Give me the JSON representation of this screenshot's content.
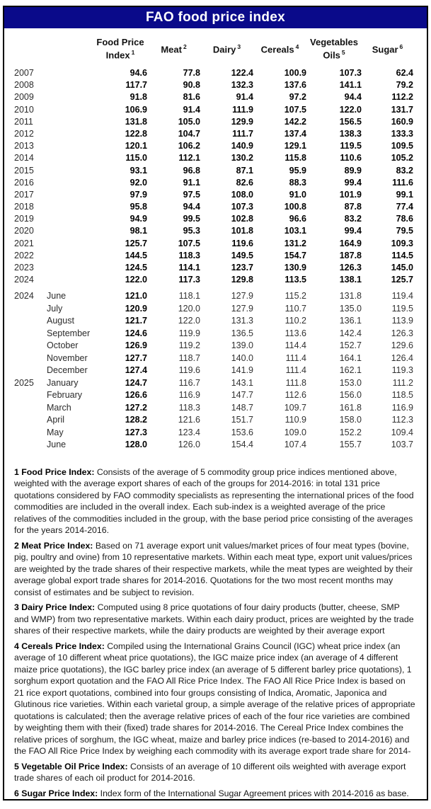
{
  "title": "FAO food price index",
  "table": {
    "columns": [
      {
        "label": "Food Price Index",
        "sup": "1"
      },
      {
        "label": "Meat",
        "sup": "2"
      },
      {
        "label": "Dairy",
        "sup": "3"
      },
      {
        "label": "Cereals",
        "sup": "4"
      },
      {
        "label": "Vegetables Oils",
        "sup": "5"
      },
      {
        "label": "Sugar",
        "sup": "6"
      }
    ],
    "year_rows": [
      {
        "year": "2007",
        "values": [
          "94.6",
          "77.8",
          "122.4",
          "100.9",
          "107.3",
          "62.4"
        ]
      },
      {
        "year": "2008",
        "values": [
          "117.7",
          "90.8",
          "132.3",
          "137.6",
          "141.1",
          "79.2"
        ]
      },
      {
        "year": "2009",
        "values": [
          "91.8",
          "81.6",
          "91.4",
          "97.2",
          "94.4",
          "112.2"
        ]
      },
      {
        "year": "2010",
        "values": [
          "106.9",
          "91.4",
          "111.9",
          "107.5",
          "122.0",
          "131.7"
        ]
      },
      {
        "year": "2011",
        "values": [
          "131.8",
          "105.0",
          "129.9",
          "142.2",
          "156.5",
          "160.9"
        ]
      },
      {
        "year": "2012",
        "values": [
          "122.8",
          "104.7",
          "111.7",
          "137.4",
          "138.3",
          "133.3"
        ]
      },
      {
        "year": "2013",
        "values": [
          "120.1",
          "106.2",
          "140.9",
          "129.1",
          "119.5",
          "109.5"
        ]
      },
      {
        "year": "2014",
        "values": [
          "115.0",
          "112.1",
          "130.2",
          "115.8",
          "110.6",
          "105.2"
        ]
      },
      {
        "year": "2015",
        "values": [
          "93.1",
          "96.8",
          "87.1",
          "95.9",
          "89.9",
          "83.2"
        ]
      },
      {
        "year": "2016",
        "values": [
          "92.0",
          "91.1",
          "82.6",
          "88.3",
          "99.4",
          "111.6"
        ]
      },
      {
        "year": "2017",
        "values": [
          "97.9",
          "97.5",
          "108.0",
          "91.0",
          "101.9",
          "99.1"
        ]
      },
      {
        "year": "2018",
        "values": [
          "95.8",
          "94.4",
          "107.3",
          "100.8",
          "87.8",
          "77.4"
        ]
      },
      {
        "year": "2019",
        "values": [
          "94.9",
          "99.5",
          "102.8",
          "96.6",
          "83.2",
          "78.6"
        ]
      },
      {
        "year": "2020",
        "values": [
          "98.1",
          "95.3",
          "101.8",
          "103.1",
          "99.4",
          "79.5"
        ]
      },
      {
        "year": "2021",
        "values": [
          "125.7",
          "107.5",
          "119.6",
          "131.2",
          "164.9",
          "109.3"
        ]
      },
      {
        "year": "2022",
        "values": [
          "144.5",
          "118.3",
          "149.5",
          "154.7",
          "187.8",
          "114.5"
        ]
      },
      {
        "year": "2023",
        "values": [
          "124.5",
          "114.1",
          "123.7",
          "130.9",
          "126.3",
          "145.0"
        ]
      },
      {
        "year": "2024",
        "values": [
          "122.0",
          "117.3",
          "129.8",
          "113.5",
          "138.1",
          "125.7"
        ]
      }
    ],
    "month_rows": [
      {
        "year": "2024",
        "month": "June",
        "fpi": "121.0",
        "values": [
          "118.1",
          "127.9",
          "115.2",
          "131.8",
          "119.4"
        ]
      },
      {
        "year": "",
        "month": "July",
        "fpi": "120.9",
        "values": [
          "120.0",
          "127.9",
          "110.7",
          "135.0",
          "119.5"
        ]
      },
      {
        "year": "",
        "month": "August",
        "fpi": "121.7",
        "values": [
          "122.0",
          "131.3",
          "110.2",
          "136.1",
          "113.9"
        ]
      },
      {
        "year": "",
        "month": "September",
        "fpi": "124.6",
        "values": [
          "119.9",
          "136.5",
          "113.6",
          "142.4",
          "126.3"
        ]
      },
      {
        "year": "",
        "month": "October",
        "fpi": "126.9",
        "values": [
          "119.2",
          "139.0",
          "114.4",
          "152.7",
          "129.6"
        ]
      },
      {
        "year": "",
        "month": "November",
        "fpi": "127.7",
        "values": [
          "118.7",
          "140.0",
          "111.4",
          "164.1",
          "126.4"
        ]
      },
      {
        "year": "",
        "month": "December",
        "fpi": "127.4",
        "values": [
          "119.6",
          "141.9",
          "111.4",
          "162.1",
          "119.3"
        ]
      },
      {
        "year": "2025",
        "month": "January",
        "fpi": "124.7",
        "values": [
          "116.7",
          "143.1",
          "111.8",
          "153.0",
          "111.2"
        ]
      },
      {
        "year": "",
        "month": "February",
        "fpi": "126.6",
        "values": [
          "116.9",
          "147.7",
          "112.6",
          "156.0",
          "118.5"
        ]
      },
      {
        "year": "",
        "month": "March",
        "fpi": "127.2",
        "values": [
          "118.3",
          "148.7",
          "109.7",
          "161.8",
          "116.9"
        ]
      },
      {
        "year": "",
        "month": "April",
        "fpi": "128.2",
        "values": [
          "121.6",
          "151.7",
          "110.9",
          "158.0",
          "112.3"
        ]
      },
      {
        "year": "",
        "month": "May",
        "fpi": "127.3",
        "values": [
          "123.4",
          "153.6",
          "109.0",
          "152.2",
          "109.4"
        ]
      },
      {
        "year": "",
        "month": "June",
        "fpi": "128.0",
        "values": [
          "126.0",
          "154.4",
          "107.4",
          "155.7",
          "103.7"
        ]
      }
    ]
  },
  "footnotes": [
    {
      "label": "1 Food Price Index:",
      "text": "Consists of the average of 5 commodity group price indices mentioned above, weighted with the average export shares of each of the groups for 2014-2016: in total 131 price quotations considered by FAO commodity specialists as representing the international prices of the food commodities are included in the overall index. Each sub-index is a weighted average of the price relatives of the commodities included in the group, with the base period price consisting of the averages for the years 2014-2016."
    },
    {
      "label": "2 Meat Price Index:",
      "text": "Based on 71 average export unit values/market prices of four meat types (bovine, pig, poultry and ovine) from 10 representative markets. Within each meat type, export unit values/prices are weighted by the trade shares of their respective markets, while the meat types are weighted by their average global export trade shares for 2014-2016. Quotations for the two most recent months may consist of estimates and be subject to revision."
    },
    {
      "label": "3 Dairy Price Index:",
      "text": "Computed using 8 price quotations of four dairy products (butter, cheese, SMP and WMP) from two representative markets. Within each dairy product, prices are weighted by the trade shares of their respective markets, while the dairy products are weighted by their average export"
    },
    {
      "label": "4 Cereals Price Index:",
      "text": "Compiled using the International Grains Council (IGC) wheat price index (an average of 10 different wheat price quotations), the IGC maize price index (an average of 4 different maize price quotations), the IGC barley price index (an average of 5 different barley price quotations), 1 sorghum export quotation and the FAO All Rice Price Index. The FAO All Rice Price Index is based on 21 rice export quotations, combined into four groups consisting of Indica, Aromatic, Japonica and Glutinous rice varieties. Within each varietal group, a simple average of the relative prices of appropriate quotations is calculated; then the average relative prices of each of the four rice varieties are combined by weighting them with their (fixed) trade shares for 2014-2016. The Cereal Price Index combines the relative prices of sorghum, the IGC wheat, maize and barley price indices (re-based to 2014-2016) and the FAO All Rice Price Index by weighing each commodity with its average export trade share for 2014-"
    },
    {
      "label": "5 Vegetable Oil Price Index:",
      "text": "Consists of an average of 10 different oils weighted with average export trade shares of each oil product for 2014-2016."
    },
    {
      "label": "6 Sugar Price Index:",
      "text": "Index form of the International Sugar Agreement prices with 2014-2016 as base."
    }
  ],
  "colors": {
    "title_bar_bg": "#0a0a8a",
    "title_text": "#ffffff",
    "border": "#000000"
  }
}
